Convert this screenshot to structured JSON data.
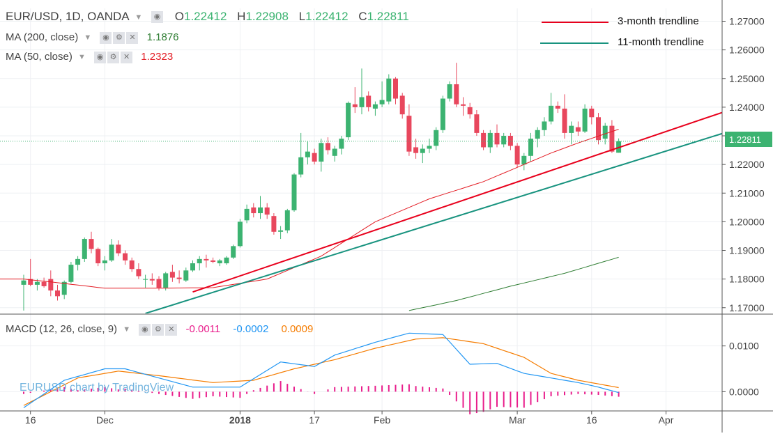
{
  "header": {
    "symbol": "EUR/USD, 1D, OANDA",
    "open_label": "O",
    "open_value": "1.22412",
    "high_label": "H",
    "high_value": "1.22908",
    "low_label": "L",
    "low_value": "1.22412",
    "close_label": "C",
    "close_value": "1.22811"
  },
  "indicators": {
    "ma200_label": "MA (200, close)",
    "ma200_value": "1.1876",
    "ma50_label": "MA (50, close)",
    "ma50_value": "1.2323",
    "macd_label": "MACD (12, 26, close, 9)",
    "macd_hist": "-0.0011",
    "macd_line": "-0.0002",
    "macd_signal": "0.0009"
  },
  "legend": {
    "trend3": "3-month trendline",
    "trend11": "11-month trendline"
  },
  "watermark": "EURUSD chart by TradingView",
  "price_axis": {
    "ticks": [
      "1.27000",
      "1.26000",
      "1.25000",
      "1.24000",
      "1.23000",
      "1.22000",
      "1.21000",
      "1.20000",
      "1.19000",
      "1.18000",
      "1.17000"
    ],
    "current_price": "1.22811"
  },
  "macd_axis": {
    "ticks": [
      "0.0100",
      "0.0000"
    ]
  },
  "time_axis": {
    "labels": [
      "16",
      "Dec",
      "2018",
      "17",
      "Feb",
      "Mar",
      "16",
      "Apr"
    ]
  },
  "icons": {
    "eye": "eye-icon",
    "settings": "gear-icon",
    "close": "close-icon",
    "dropdown": "chevron-down-icon"
  },
  "colors": {
    "up": "#3cb371",
    "down": "#e8475d",
    "ma50": "#e31b23",
    "ma200": "#2e7d32",
    "trend3": "#e8001c",
    "trend11": "#18937f",
    "macd": "#2196f3",
    "signal": "#f57c00",
    "hist": "#e91e8c",
    "price_tag": "#3cb371"
  },
  "chart_data": {
    "type": "candlestick",
    "title": "EUR/USD, 1D, OANDA",
    "ylim": [
      1.168,
      1.2745
    ],
    "date_labels": [
      "16",
      "Dec",
      "2018",
      "17",
      "Feb",
      "Mar",
      "16",
      "Apr"
    ],
    "candles": [
      [
        1.178,
        1.1815,
        1.169,
        1.1795
      ],
      [
        1.18,
        1.187,
        1.1775,
        1.178
      ],
      [
        1.178,
        1.18,
        1.176,
        1.179
      ],
      [
        1.179,
        1.1805,
        1.177,
        1.1775
      ],
      [
        1.18,
        1.183,
        1.174,
        1.176
      ],
      [
        1.176,
        1.178,
        1.1725,
        1.174
      ],
      [
        1.1745,
        1.1795,
        1.173,
        1.179
      ],
      [
        1.179,
        1.186,
        1.1785,
        1.185
      ],
      [
        1.185,
        1.188,
        1.183,
        1.187
      ],
      [
        1.187,
        1.1945,
        1.186,
        1.194
      ],
      [
        1.194,
        1.1965,
        1.189,
        1.1905
      ],
      [
        1.1905,
        1.191,
        1.1845,
        1.1855
      ],
      [
        1.1855,
        1.188,
        1.183,
        1.1865
      ],
      [
        1.1865,
        1.194,
        1.186,
        1.192
      ],
      [
        1.192,
        1.1935,
        1.188,
        1.189
      ],
      [
        1.189,
        1.19,
        1.185,
        1.1865
      ],
      [
        1.1865,
        1.1875,
        1.1825,
        1.1835
      ],
      [
        1.1835,
        1.1855,
        1.18,
        1.181
      ],
      [
        1.18,
        1.1815,
        1.177,
        1.18
      ],
      [
        1.18,
        1.182,
        1.178,
        1.1795
      ],
      [
        1.18,
        1.181,
        1.176,
        1.177
      ],
      [
        1.177,
        1.1825,
        1.176,
        1.182
      ],
      [
        1.1825,
        1.185,
        1.179,
        1.1805
      ],
      [
        1.1805,
        1.183,
        1.1785,
        1.18
      ],
      [
        1.1795,
        1.184,
        1.179,
        1.183
      ],
      [
        1.183,
        1.1865,
        1.1825,
        1.1855
      ],
      [
        1.1855,
        1.188,
        1.183,
        1.187
      ],
      [
        1.187,
        1.1885,
        1.184,
        1.1865
      ],
      [
        1.1865,
        1.1875,
        1.1855,
        1.186
      ],
      [
        1.1855,
        1.187,
        1.1845,
        1.1865
      ],
      [
        1.1855,
        1.188,
        1.185,
        1.1875
      ],
      [
        1.1875,
        1.192,
        1.187,
        1.1915
      ],
      [
        1.1915,
        1.201,
        1.191,
        1.2
      ],
      [
        1.2005,
        1.206,
        1.1995,
        1.2045
      ],
      [
        1.205,
        1.2065,
        1.2015,
        1.203
      ],
      [
        1.203,
        1.209,
        1.201,
        1.205
      ],
      [
        1.205,
        1.2065,
        1.201,
        1.2025
      ],
      [
        1.202,
        1.203,
        1.1955,
        1.1965
      ],
      [
        1.1965,
        1.1985,
        1.194,
        1.197
      ],
      [
        1.197,
        1.2045,
        1.196,
        1.204
      ],
      [
        1.204,
        1.217,
        1.2035,
        1.2165
      ],
      [
        1.2165,
        1.231,
        1.2155,
        1.2225
      ],
      [
        1.2225,
        1.228,
        1.22,
        1.2245
      ],
      [
        1.224,
        1.2255,
        1.22,
        1.221
      ],
      [
        1.221,
        1.229,
        1.2175,
        1.2275
      ],
      [
        1.2275,
        1.2295,
        1.2235,
        1.225
      ],
      [
        1.223,
        1.2265,
        1.221,
        1.2255
      ],
      [
        1.2255,
        1.23,
        1.2235,
        1.229
      ],
      [
        1.2295,
        1.242,
        1.2285,
        1.2415
      ],
      [
        1.241,
        1.247,
        1.238,
        1.24
      ],
      [
        1.24,
        1.2535,
        1.2375,
        1.2435
      ],
      [
        1.244,
        1.2455,
        1.2385,
        1.24
      ],
      [
        1.2395,
        1.242,
        1.237,
        1.241
      ],
      [
        1.241,
        1.249,
        1.24,
        1.2425
      ],
      [
        1.242,
        1.2515,
        1.241,
        1.25
      ],
      [
        1.25,
        1.2505,
        1.241,
        1.243
      ],
      [
        1.244,
        1.245,
        1.236,
        1.2375
      ],
      [
        1.237,
        1.241,
        1.223,
        1.2245
      ],
      [
        1.226,
        1.229,
        1.222,
        1.224
      ],
      [
        1.224,
        1.227,
        1.2205,
        1.2255
      ],
      [
        1.2255,
        1.229,
        1.224,
        1.2265
      ],
      [
        1.2265,
        1.233,
        1.225,
        1.232
      ],
      [
        1.232,
        1.244,
        1.231,
        1.243
      ],
      [
        1.243,
        1.249,
        1.242,
        1.248
      ],
      [
        1.248,
        1.2555,
        1.24,
        1.241
      ],
      [
        1.241,
        1.2435,
        1.237,
        1.2405
      ],
      [
        1.24,
        1.2415,
        1.236,
        1.2375
      ],
      [
        1.2375,
        1.239,
        1.23,
        1.231
      ],
      [
        1.231,
        1.232,
        1.225,
        1.226
      ],
      [
        1.226,
        1.232,
        1.224,
        1.231
      ],
      [
        1.231,
        1.234,
        1.226,
        1.227
      ],
      [
        1.227,
        1.231,
        1.226,
        1.23
      ],
      [
        1.23,
        1.231,
        1.225,
        1.2265
      ],
      [
        1.2265,
        1.2275,
        1.219,
        1.22
      ],
      [
        1.22,
        1.224,
        1.218,
        1.223
      ],
      [
        1.223,
        1.231,
        1.221,
        1.229
      ],
      [
        1.229,
        1.233,
        1.226,
        1.232
      ],
      [
        1.232,
        1.2365,
        1.23,
        1.235
      ],
      [
        1.235,
        1.245,
        1.234,
        1.2405
      ],
      [
        1.2405,
        1.242,
        1.238,
        1.2395
      ],
      [
        1.2395,
        1.2445,
        1.229,
        1.231
      ],
      [
        1.231,
        1.235,
        1.227,
        1.2335
      ],
      [
        1.233,
        1.235,
        1.23,
        1.2315
      ],
      [
        1.2315,
        1.241,
        1.231,
        1.2395
      ],
      [
        1.2395,
        1.2405,
        1.234,
        1.2365
      ],
      [
        1.2365,
        1.238,
        1.227,
        1.2285
      ],
      [
        1.229,
        1.2345,
        1.227,
        1.2335
      ],
      [
        1.2335,
        1.2355,
        1.224,
        1.2245
      ],
      [
        1.2241,
        1.2291,
        1.2241,
        1.2281
      ]
    ],
    "ma50": {
      "first_index": 0,
      "start": 1.18,
      "knots": [
        [
          0,
          1.18
        ],
        [
          4,
          1.179
        ],
        [
          12,
          1.1768
        ],
        [
          20,
          1.1768
        ],
        [
          28,
          1.177
        ],
        [
          36,
          1.18
        ],
        [
          44,
          1.188
        ],
        [
          52,
          1.2
        ],
        [
          60,
          1.208
        ],
        [
          68,
          1.214
        ],
        [
          74,
          1.22
        ],
        [
          78,
          1.224
        ],
        [
          82,
          1.2275
        ],
        [
          88,
          1.2323
        ]
      ]
    },
    "ma200": {
      "knots": [
        [
          57,
          1.169
        ],
        [
          64,
          1.1725
        ],
        [
          72,
          1.1775
        ],
        [
          80,
          1.182
        ],
        [
          88,
          1.1876
        ]
      ]
    },
    "trendlines": [
      {
        "name": "3-month trendline",
        "p1": [
          25,
          1.1755
        ],
        "p2": [
          90,
          1.2275
        ],
        "extend_to": 1.2415
      },
      {
        "name": "11-month trendline",
        "p1": [
          18,
          1.168
        ],
        "p2": [
          90,
          1.221
        ],
        "extend_to": 1.2281
      }
    ],
    "macd": {
      "ylim": [
        -0.0042,
        0.0168
      ],
      "macd_knots": [
        [
          0,
          -0.0035
        ],
        [
          6,
          0.0025
        ],
        [
          12,
          0.005
        ],
        [
          15,
          0.005
        ],
        [
          20,
          0.003
        ],
        [
          25,
          0.001
        ],
        [
          32,
          0.001
        ],
        [
          38,
          0.0065
        ],
        [
          43,
          0.0055
        ],
        [
          46,
          0.008
        ],
        [
          52,
          0.0108
        ],
        [
          57,
          0.0128
        ],
        [
          62,
          0.0125
        ],
        [
          66,
          0.006
        ],
        [
          70,
          0.0062
        ],
        [
          74,
          0.004
        ],
        [
          78,
          0.003
        ],
        [
          82,
          0.002
        ],
        [
          85,
          0.001
        ],
        [
          88,
          -0.0002
        ]
      ],
      "signal_knots": [
        [
          0,
          -0.003
        ],
        [
          8,
          0.003
        ],
        [
          14,
          0.0045
        ],
        [
          20,
          0.0035
        ],
        [
          28,
          0.002
        ],
        [
          34,
          0.0025
        ],
        [
          40,
          0.005
        ],
        [
          46,
          0.007
        ],
        [
          52,
          0.0095
        ],
        [
          58,
          0.0115
        ],
        [
          62,
          0.0118
        ],
        [
          68,
          0.0105
        ],
        [
          74,
          0.0075
        ],
        [
          78,
          0.004
        ],
        [
          82,
          0.0025
        ],
        [
          88,
          0.0009
        ]
      ]
    }
  }
}
